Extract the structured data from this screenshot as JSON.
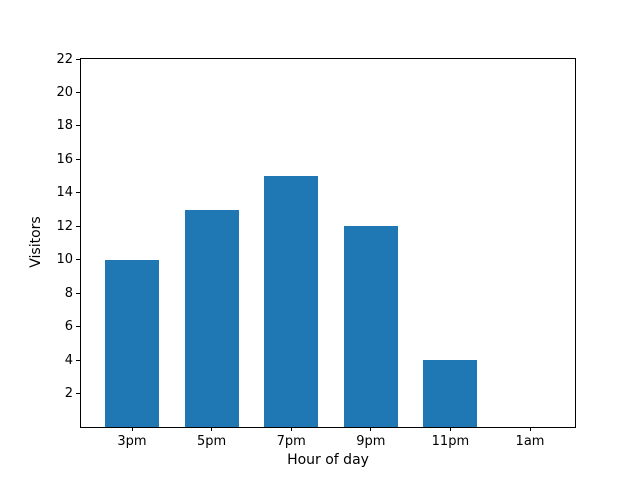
{
  "chart_data": {
    "type": "bar",
    "title": "",
    "xlabel": "Hour of day",
    "ylabel": "Visitors",
    "categories": [
      "3pm",
      "5pm",
      "7pm",
      "9pm",
      "11pm",
      "1am"
    ],
    "values": [
      10,
      13,
      15,
      12,
      4,
      0
    ],
    "ylim": [
      0,
      22
    ],
    "yticks": [
      2,
      4,
      6,
      8,
      10,
      12,
      14,
      16,
      18,
      20,
      22
    ],
    "grid": false,
    "legend": null,
    "bar_color": "#1f77b4",
    "spine_color": "#000000",
    "background_color": "#ffffff"
  }
}
